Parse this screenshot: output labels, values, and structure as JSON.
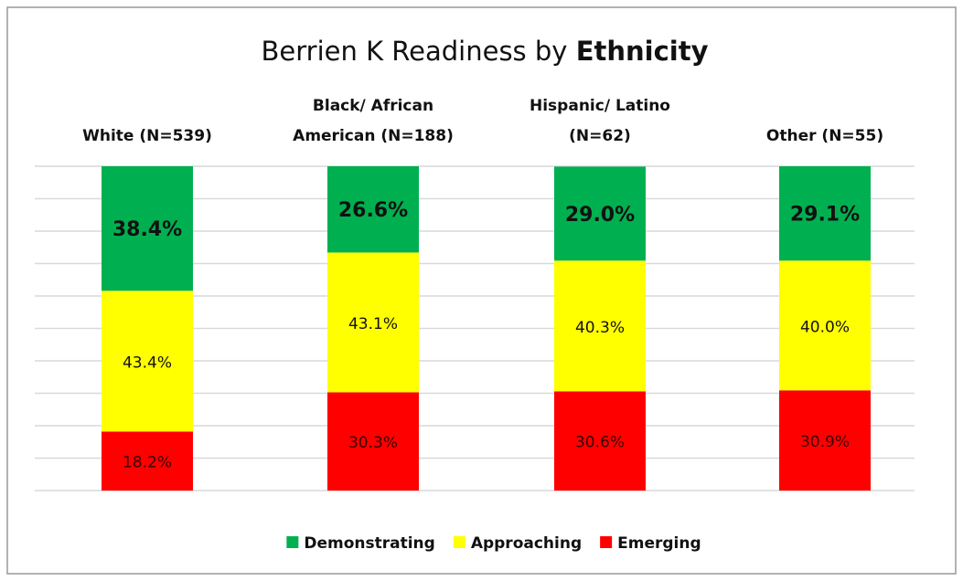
{
  "chart_data": {
    "type": "stacked_bar",
    "title": "Berrien K Readiness by Ethnicity",
    "categories": [
      "White (N=539)",
      "Black/ African American (N=188)",
      "Hispanic/ Latino (N=62)",
      "Other (N=55)"
    ],
    "series": [
      {
        "name": "Demonstrating",
        "color": "#00b050",
        "values": [
          38.4,
          26.6,
          29.0,
          29.1
        ],
        "value_labels": [
          "38.4%",
          "26.6%",
          "29.0%",
          "29.1%"
        ]
      },
      {
        "name": "Approaching",
        "color": "#ffff00",
        "values": [
          43.4,
          43.1,
          40.3,
          40.0
        ],
        "value_labels": [
          "43.4%",
          "43.1%",
          "40.3%",
          "40.0%"
        ]
      },
      {
        "name": "Emerging",
        "color": "#ff0000",
        "values": [
          18.2,
          30.3,
          30.6,
          30.9
        ],
        "value_labels": [
          "18.2%",
          "30.3%",
          "30.6%",
          "30.9%"
        ]
      }
    ],
    "ylim": [
      0,
      100
    ],
    "yticks": [
      0,
      10,
      20,
      30,
      40,
      50,
      60,
      70,
      80,
      90,
      100
    ],
    "grid": true,
    "legend": "bottom"
  }
}
